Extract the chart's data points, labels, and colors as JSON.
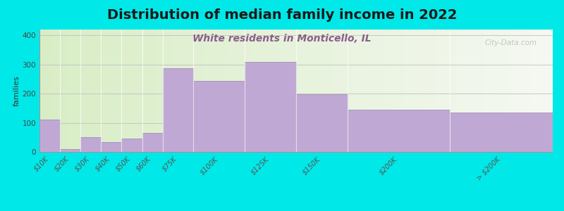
{
  "title": "Distribution of median family income in 2022",
  "subtitle": "White residents in Monticello, IL",
  "ylabel": "families",
  "categories": [
    "$10K",
    "$20K",
    "$30K",
    "$40K",
    "$50K",
    "$60K",
    "$75K",
    "$100K",
    "$125K",
    "$150K",
    "$200K",
    "> $200K"
  ],
  "values": [
    110,
    10,
    50,
    35,
    45,
    65,
    288,
    245,
    308,
    197,
    145,
    135
  ],
  "bar_widths": [
    1,
    1,
    1,
    1,
    1,
    1,
    1.5,
    2.5,
    2.5,
    2.5,
    5,
    5
  ],
  "bar_lefts": [
    0,
    1,
    2,
    3,
    4,
    5,
    6,
    7.5,
    10,
    12.5,
    15,
    20
  ],
  "bar_color": "#c0a8d4",
  "bar_edge_color": "#a090b8",
  "background_color": "#00e8e8",
  "title_fontsize": 14,
  "subtitle_fontsize": 10,
  "subtitle_color": "#8b5e8b",
  "ylabel_fontsize": 8,
  "tick_fontsize": 7,
  "ylim": [
    0,
    420
  ],
  "yticks": [
    0,
    100,
    200,
    300,
    400
  ],
  "xlim": [
    0,
    25
  ],
  "watermark": "City-Data.com"
}
